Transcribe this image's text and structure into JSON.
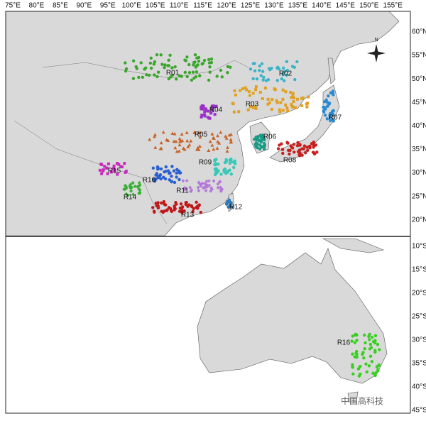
{
  "map": {
    "lon_ticks": [
      "75°E",
      "80°E",
      "85°E",
      "90°E",
      "95°E",
      "100°E",
      "105°E",
      "110°E",
      "115°E",
      "120°E",
      "125°E",
      "130°E",
      "135°E",
      "140°E",
      "145°E",
      "150°E",
      "155°E"
    ],
    "lat_ticks_north": [
      "60°N",
      "55°N",
      "50°N",
      "45°N",
      "40°N",
      "35°N",
      "30°N",
      "25°N",
      "20°N"
    ],
    "lat_ticks_south": [
      "10°S",
      "15°S",
      "20°S",
      "25°S",
      "30°S",
      "35°S",
      "40°S",
      "45°S"
    ],
    "regions": [
      {
        "label": "R01",
        "color": "#3aa62c"
      },
      {
        "label": "R02",
        "color": "#3bb3c8"
      },
      {
        "label": "R03",
        "color": "#e0a020"
      },
      {
        "label": "R04",
        "color": "#9b30c8"
      },
      {
        "label": "R05",
        "color": "#c8642a"
      },
      {
        "label": "R06",
        "color": "#1a9a86"
      },
      {
        "label": "R07",
        "color": "#2a8ad0"
      },
      {
        "label": "R08",
        "color": "#c81e1e"
      },
      {
        "label": "R09",
        "color": "#36c8b8"
      },
      {
        "label": "R10",
        "color": "#2a5ed0"
      },
      {
        "label": "R11",
        "color": "#b478d8"
      },
      {
        "label": "R12",
        "color": "#2a7ab8"
      },
      {
        "label": "R13",
        "color": "#c01818"
      },
      {
        "label": "R14",
        "color": "#34b030"
      },
      {
        "label": "R15",
        "color": "#c82ac0"
      },
      {
        "label": "R16",
        "color": "#38d020"
      }
    ],
    "watermark": "中国高科技"
  }
}
